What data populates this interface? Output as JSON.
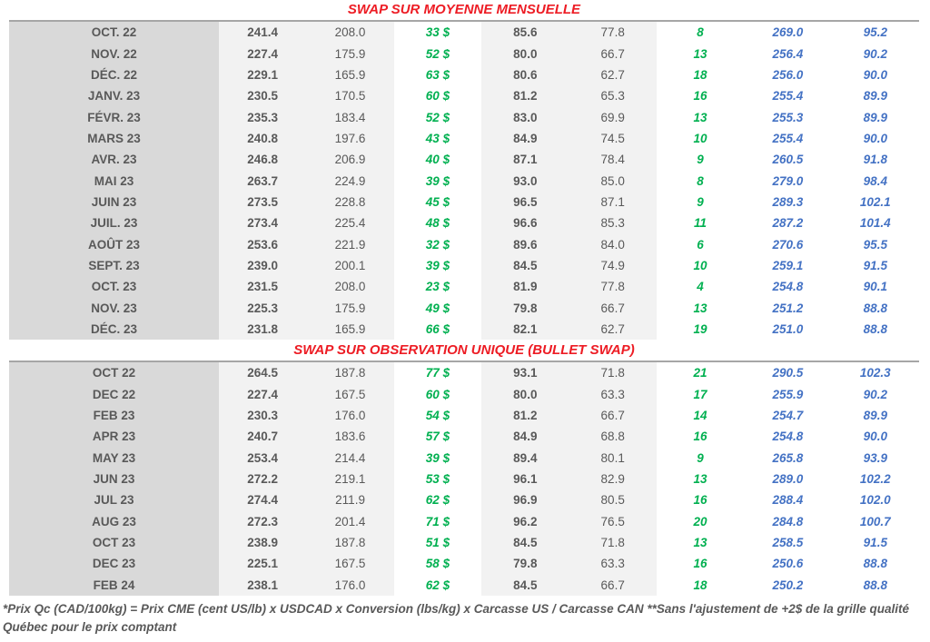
{
  "colors": {
    "red": "#ed1c24",
    "green": "#00b050",
    "blue": "#4472c4",
    "text_gray": "#595959",
    "month_column_bg": "#d9d9d9",
    "band_bg": "#f2f2f2",
    "divider": "#a6a6a6"
  },
  "tables": [
    {
      "title": "SWAP SUR MOYENNE MENSUELLE",
      "rows": [
        [
          "OCT. 22",
          "241.4",
          "208.0",
          "33 $",
          "85.6",
          "77.8",
          "8",
          "269.0",
          "95.2"
        ],
        [
          "NOV. 22",
          "227.4",
          "175.9",
          "52 $",
          "80.0",
          "66.7",
          "13",
          "256.4",
          "90.2"
        ],
        [
          "DÉC. 22",
          "229.1",
          "165.9",
          "63 $",
          "80.6",
          "62.7",
          "18",
          "256.0",
          "90.0"
        ],
        [
          "JANV. 23",
          "230.5",
          "170.5",
          "60 $",
          "81.2",
          "65.3",
          "16",
          "255.4",
          "89.9"
        ],
        [
          "FÉVR. 23",
          "235.3",
          "183.4",
          "52 $",
          "83.0",
          "69.9",
          "13",
          "255.3",
          "89.9"
        ],
        [
          "MARS 23",
          "240.8",
          "197.6",
          "43 $",
          "84.9",
          "74.5",
          "10",
          "255.4",
          "90.0"
        ],
        [
          "AVR. 23",
          "246.8",
          "206.9",
          "40 $",
          "87.1",
          "78.4",
          "9",
          "260.5",
          "91.8"
        ],
        [
          "MAI 23",
          "263.7",
          "224.9",
          "39 $",
          "93.0",
          "85.0",
          "8",
          "279.0",
          "98.4"
        ],
        [
          "JUIN 23",
          "273.5",
          "228.8",
          "45 $",
          "96.5",
          "87.1",
          "9",
          "289.3",
          "102.1"
        ],
        [
          "JUIL. 23",
          "273.4",
          "225.4",
          "48 $",
          "96.6",
          "85.3",
          "11",
          "287.2",
          "101.4"
        ],
        [
          "AOÛT 23",
          "253.6",
          "221.9",
          "32 $",
          "89.6",
          "84.0",
          "6",
          "270.6",
          "95.5"
        ],
        [
          "SEPT. 23",
          "239.0",
          "200.1",
          "39 $",
          "84.5",
          "74.9",
          "10",
          "259.1",
          "91.5"
        ],
        [
          "OCT. 23",
          "231.5",
          "208.0",
          "23 $",
          "81.9",
          "77.8",
          "4",
          "254.8",
          "90.1"
        ],
        [
          "NOV. 23",
          "225.3",
          "175.9",
          "49 $",
          "79.8",
          "66.7",
          "13",
          "251.2",
          "88.8"
        ],
        [
          "DÉC. 23",
          "231.8",
          "165.9",
          "66 $",
          "82.1",
          "62.7",
          "19",
          "251.0",
          "88.8"
        ]
      ]
    },
    {
      "title": "SWAP SUR OBSERVATION UNIQUE (BULLET SWAP)",
      "rows": [
        [
          "OCT 22",
          "264.5",
          "187.8",
          "77 $",
          "93.1",
          "71.8",
          "21",
          "290.5",
          "102.3"
        ],
        [
          "DEC 22",
          "227.4",
          "167.5",
          "60 $",
          "80.0",
          "63.3",
          "17",
          "255.9",
          "90.2"
        ],
        [
          "FEB 23",
          "230.3",
          "176.0",
          "54 $",
          "81.2",
          "66.7",
          "14",
          "254.7",
          "89.9"
        ],
        [
          "APR 23",
          "240.7",
          "183.6",
          "57 $",
          "84.9",
          "68.8",
          "16",
          "254.8",
          "90.0"
        ],
        [
          "MAY 23",
          "253.4",
          "214.4",
          "39 $",
          "89.4",
          "80.1",
          "9",
          "265.8",
          "93.9"
        ],
        [
          "JUN 23",
          "272.2",
          "219.1",
          "53 $",
          "96.1",
          "82.9",
          "13",
          "289.0",
          "102.2"
        ],
        [
          "JUL 23",
          "274.4",
          "211.9",
          "62 $",
          "96.9",
          "80.5",
          "16",
          "288.4",
          "102.0"
        ],
        [
          "AUG 23",
          "272.3",
          "201.4",
          "71 $",
          "96.2",
          "76.5",
          "20",
          "284.8",
          "100.7"
        ],
        [
          "OCT 23",
          "238.9",
          "187.8",
          "51 $",
          "84.5",
          "71.8",
          "13",
          "258.5",
          "91.5"
        ],
        [
          "DEC 23",
          "225.1",
          "167.5",
          "58 $",
          "79.8",
          "63.3",
          "16",
          "250.6",
          "88.8"
        ],
        [
          "FEB 24",
          "238.1",
          "176.0",
          "62 $",
          "84.5",
          "66.7",
          "18",
          "250.2",
          "88.8"
        ]
      ]
    }
  ],
  "footnote": {
    "line1": "*Prix Qc (CAD/100kg) = Prix CME (cent US/lb) x USDCAD x Conversion (lbs/kg) x Carcasse US / Carcasse CAN **Sans l'ajustement de +2$ de la grille qualité",
    "line2": "Québec pour le prix comptant"
  }
}
